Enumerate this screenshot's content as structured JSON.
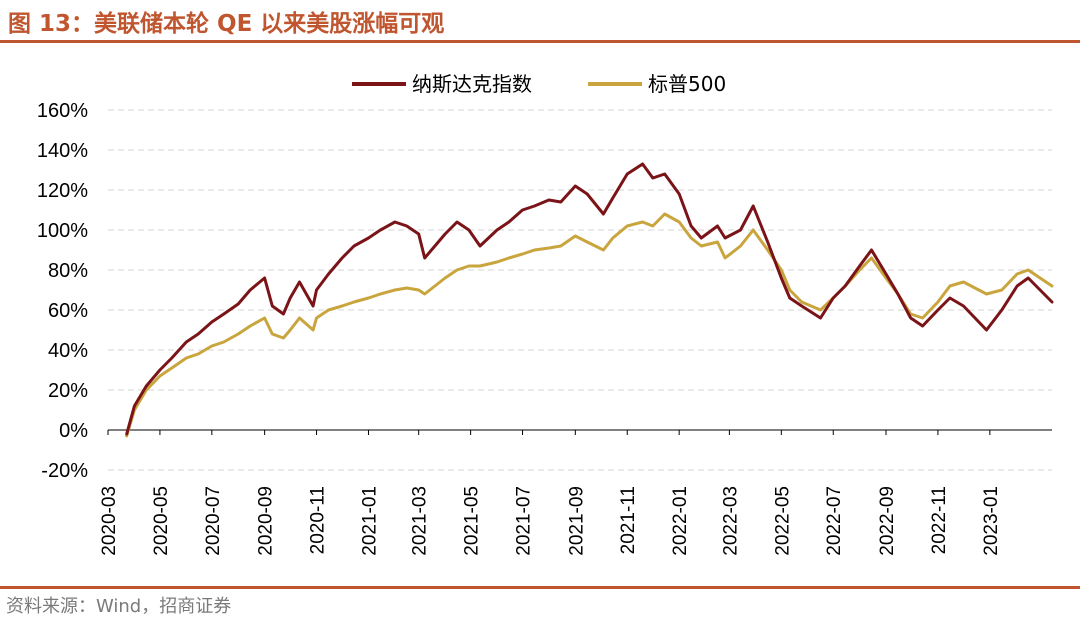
{
  "title": "图 13：美联储本轮 QE 以来美股涨幅可观",
  "source": "资料来源：Wind，招商证券",
  "chart_data": {
    "type": "line",
    "ylim": [
      -20,
      160
    ],
    "yticks": [
      -20,
      0,
      20,
      40,
      60,
      80,
      100,
      120,
      140,
      160
    ],
    "ytick_labels": [
      "-20%",
      "0%",
      "20%",
      "40%",
      "60%",
      "80%",
      "100%",
      "120%",
      "140%",
      "160%"
    ],
    "xticks": [
      "2020-03",
      "2020-05",
      "2020-07",
      "2020-09",
      "2020-11",
      "2021-01",
      "2021-03",
      "2021-05",
      "2021-07",
      "2021-09",
      "2021-11",
      "2022-01",
      "2022-03",
      "2022-05",
      "2022-07",
      "2022-09",
      "2022-11",
      "2023-01"
    ],
    "x_end": "2023-03-15",
    "legend_position": "top",
    "series": [
      {
        "name": "纳斯达克指数",
        "color": "#7a1418",
        "x": [
          "2020-03-23",
          "2020-04-01",
          "2020-04-15",
          "2020-05-01",
          "2020-05-15",
          "2020-06-01",
          "2020-06-15",
          "2020-07-01",
          "2020-07-15",
          "2020-08-01",
          "2020-08-15",
          "2020-09-01",
          "2020-09-10",
          "2020-09-23",
          "2020-10-01",
          "2020-10-12",
          "2020-10-28",
          "2020-11-01",
          "2020-11-15",
          "2020-12-01",
          "2020-12-15",
          "2021-01-01",
          "2021-01-15",
          "2021-02-01",
          "2021-02-15",
          "2021-03-01",
          "2021-03-08",
          "2021-03-20",
          "2021-04-01",
          "2021-04-15",
          "2021-04-29",
          "2021-05-12",
          "2021-06-01",
          "2021-06-15",
          "2021-07-01",
          "2021-07-15",
          "2021-08-01",
          "2021-08-15",
          "2021-09-01",
          "2021-09-15",
          "2021-10-04",
          "2021-10-15",
          "2021-11-01",
          "2021-11-19",
          "2021-12-01",
          "2021-12-15",
          "2022-01-01",
          "2022-01-15",
          "2022-01-27",
          "2022-02-15",
          "2022-02-24",
          "2022-03-14",
          "2022-03-29",
          "2022-04-15",
          "2022-05-01",
          "2022-05-11",
          "2022-05-25",
          "2022-06-16",
          "2022-07-01",
          "2022-07-15",
          "2022-08-01",
          "2022-08-15",
          "2022-09-01",
          "2022-09-15",
          "2022-09-30",
          "2022-10-14",
          "2022-11-01",
          "2022-11-15",
          "2022-12-01",
          "2022-12-28",
          "2023-01-15",
          "2023-02-02",
          "2023-02-15",
          "2023-03-01",
          "2023-03-15"
        ],
        "values": [
          -2,
          12,
          22,
          30,
          36,
          44,
          48,
          54,
          58,
          63,
          70,
          76,
          62,
          58,
          66,
          74,
          62,
          70,
          78,
          86,
          92,
          96,
          100,
          104,
          102,
          98,
          86,
          92,
          98,
          104,
          100,
          92,
          100,
          104,
          110,
          112,
          115,
          114,
          122,
          118,
          108,
          116,
          128,
          133,
          126,
          128,
          118,
          102,
          96,
          102,
          96,
          100,
          112,
          94,
          76,
          66,
          62,
          56,
          66,
          72,
          82,
          90,
          78,
          68,
          56,
          52,
          60,
          66,
          62,
          50,
          60,
          72,
          76,
          70,
          64
        ]
      },
      {
        "name": "标普500",
        "color": "#c9a53e",
        "x": [
          "2020-03-23",
          "2020-04-01",
          "2020-04-15",
          "2020-05-01",
          "2020-05-15",
          "2020-06-01",
          "2020-06-15",
          "2020-07-01",
          "2020-07-15",
          "2020-08-01",
          "2020-08-15",
          "2020-09-01",
          "2020-09-10",
          "2020-09-23",
          "2020-10-01",
          "2020-10-12",
          "2020-10-28",
          "2020-11-01",
          "2020-11-15",
          "2020-12-01",
          "2020-12-15",
          "2021-01-01",
          "2021-01-15",
          "2021-02-01",
          "2021-02-15",
          "2021-03-01",
          "2021-03-08",
          "2021-03-20",
          "2021-04-01",
          "2021-04-15",
          "2021-04-29",
          "2021-05-12",
          "2021-06-01",
          "2021-06-15",
          "2021-07-01",
          "2021-07-15",
          "2021-08-01",
          "2021-08-15",
          "2021-09-01",
          "2021-09-15",
          "2021-10-04",
          "2021-10-15",
          "2021-11-01",
          "2021-11-19",
          "2021-12-01",
          "2021-12-15",
          "2022-01-01",
          "2022-01-15",
          "2022-01-27",
          "2022-02-15",
          "2022-02-24",
          "2022-03-14",
          "2022-03-29",
          "2022-04-15",
          "2022-05-01",
          "2022-05-11",
          "2022-05-25",
          "2022-06-16",
          "2022-07-01",
          "2022-07-15",
          "2022-08-01",
          "2022-08-15",
          "2022-09-01",
          "2022-09-15",
          "2022-09-30",
          "2022-10-14",
          "2022-11-01",
          "2022-11-15",
          "2022-12-01",
          "2022-12-28",
          "2023-01-15",
          "2023-02-02",
          "2023-02-15",
          "2023-03-01",
          "2023-03-15"
        ],
        "values": [
          -3,
          10,
          20,
          27,
          31,
          36,
          38,
          42,
          44,
          48,
          52,
          56,
          48,
          46,
          50,
          56,
          50,
          56,
          60,
          62,
          64,
          66,
          68,
          70,
          71,
          70,
          68,
          72,
          76,
          80,
          82,
          82,
          84,
          86,
          88,
          90,
          91,
          92,
          97,
          94,
          90,
          96,
          102,
          104,
          102,
          108,
          104,
          96,
          92,
          94,
          86,
          92,
          100,
          90,
          80,
          70,
          64,
          60,
          66,
          72,
          80,
          86,
          76,
          68,
          58,
          56,
          64,
          72,
          74,
          68,
          70,
          78,
          80,
          76,
          72
        ]
      }
    ]
  }
}
